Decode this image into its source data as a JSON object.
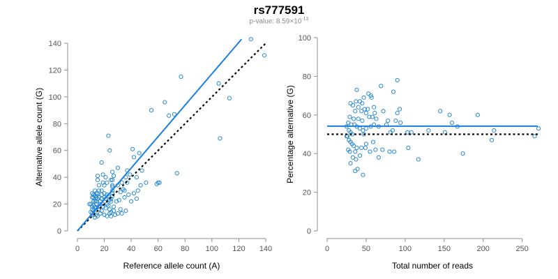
{
  "header": {
    "title": "rs777591",
    "pvalue_label": "p-value: 8.59×10",
    "pvalue_exp": "-13"
  },
  "colors": {
    "points": "#2b8ad0",
    "fit_line": "#1a7fe0",
    "reference_line": "#000000"
  },
  "chart_data": [
    {
      "type": "scatter",
      "title": "",
      "xlabel": "Reference allele count (A)",
      "ylabel": "Alternative allele count (G)",
      "xlim": [
        0,
        140
      ],
      "ylim": [
        0,
        140
      ],
      "xticks": [
        0,
        20,
        40,
        60,
        80,
        100,
        120,
        140
      ],
      "yticks": [
        0,
        20,
        40,
        60,
        80,
        100,
        120,
        140
      ],
      "fit_line": {
        "x": [
          0,
          122
        ],
        "y": [
          0,
          143
        ]
      },
      "reference_line": {
        "x": [
          0,
          140
        ],
        "y": [
          0,
          140
        ]
      },
      "points": [
        [
          129,
          143
        ],
        [
          139,
          131
        ],
        [
          77,
          115
        ],
        [
          105,
          110
        ],
        [
          113,
          99
        ],
        [
          65,
          96
        ],
        [
          72,
          87
        ],
        [
          55,
          90
        ],
        [
          68,
          86
        ],
        [
          106,
          69
        ],
        [
          23,
          71
        ],
        [
          18,
          51
        ],
        [
          24,
          60
        ],
        [
          41,
          61
        ],
        [
          46,
          58
        ],
        [
          42,
          55
        ],
        [
          30,
          47
        ],
        [
          26,
          44
        ],
        [
          27,
          41
        ],
        [
          37,
          45
        ],
        [
          48,
          45
        ],
        [
          44,
          40
        ],
        [
          36,
          40
        ],
        [
          39,
          42
        ],
        [
          37,
          36
        ],
        [
          33,
          36
        ],
        [
          30,
          34
        ],
        [
          47,
          34
        ],
        [
          51,
          36
        ],
        [
          61,
          36
        ],
        [
          59,
          35
        ],
        [
          34,
          31
        ],
        [
          35,
          30
        ],
        [
          32,
          29
        ],
        [
          35,
          25
        ],
        [
          45,
          30
        ],
        [
          42,
          28
        ],
        [
          38,
          27
        ],
        [
          44,
          24
        ],
        [
          40,
          22
        ],
        [
          31,
          23
        ],
        [
          29,
          22
        ],
        [
          27,
          18
        ],
        [
          26,
          26
        ],
        [
          26,
          30
        ],
        [
          26,
          34
        ],
        [
          26,
          38
        ],
        [
          26,
          33
        ],
        [
          25,
          38
        ],
        [
          22,
          36
        ],
        [
          21,
          40
        ],
        [
          20,
          34
        ],
        [
          19,
          36
        ],
        [
          19,
          42
        ],
        [
          18,
          27
        ],
        [
          16,
          34
        ],
        [
          15,
          24
        ],
        [
          15,
          38
        ],
        [
          14,
          22
        ],
        [
          15,
          41
        ],
        [
          16,
          30
        ],
        [
          17,
          20
        ],
        [
          18,
          24
        ],
        [
          20,
          28
        ],
        [
          21,
          24
        ],
        [
          22,
          20
        ],
        [
          23,
          26
        ],
        [
          24,
          16
        ],
        [
          25,
          22
        ],
        [
          25,
          14
        ],
        [
          22,
          11
        ],
        [
          20,
          12
        ],
        [
          18,
          15
        ],
        [
          17,
          13
        ],
        [
          16,
          16
        ],
        [
          15,
          11
        ],
        [
          14,
          12
        ],
        [
          13,
          10
        ],
        [
          12,
          12
        ],
        [
          11,
          13
        ],
        [
          11,
          18
        ],
        [
          10,
          20
        ],
        [
          12,
          15
        ],
        [
          13,
          18
        ],
        [
          14,
          17
        ],
        [
          14,
          20
        ],
        [
          12,
          22
        ],
        [
          13,
          26
        ],
        [
          12,
          27
        ],
        [
          14,
          28
        ],
        [
          11,
          25
        ],
        [
          13,
          30
        ],
        [
          16,
          18
        ],
        [
          17,
          22
        ],
        [
          19,
          20
        ],
        [
          21,
          17
        ],
        [
          23,
          19
        ],
        [
          24,
          23
        ],
        [
          27,
          15
        ],
        [
          30,
          13
        ],
        [
          28,
          12
        ],
        [
          25,
          11
        ],
        [
          32,
          16
        ],
        [
          36,
          15
        ],
        [
          33,
          13
        ],
        [
          24,
          13
        ],
        [
          10,
          14
        ],
        [
          11,
          16
        ],
        [
          9,
          20
        ],
        [
          12,
          19
        ],
        [
          12,
          25
        ],
        [
          11,
          28
        ],
        [
          13,
          22
        ],
        [
          14,
          25
        ],
        [
          16,
          25
        ],
        [
          15,
          28
        ],
        [
          18,
          30
        ],
        [
          20,
          25
        ],
        [
          22,
          27
        ],
        [
          25,
          24
        ],
        [
          26,
          28
        ],
        [
          19,
          18
        ],
        [
          60,
          36
        ],
        [
          74,
          43
        ]
      ]
    },
    {
      "type": "scatter",
      "title": "",
      "xlabel": "Total number of reads",
      "ylabel": "Percentage alternative (G)",
      "xlim": [
        0,
        270
      ],
      "ylim": [
        0,
        100
      ],
      "xticks": [
        0,
        50,
        100,
        150,
        200,
        250
      ],
      "yticks": [
        0,
        20,
        40,
        60,
        80,
        100
      ],
      "fit_line": {
        "x": [
          0,
          270
        ],
        "y": [
          54.2,
          54.2
        ]
      },
      "reference_line": {
        "x": [
          0,
          270
        ],
        "y": [
          50,
          50
        ]
      },
      "points": [
        [
          90,
          78
        ],
        [
          69,
          75
        ],
        [
          85,
          72
        ],
        [
          38,
          73
        ],
        [
          53,
          71
        ],
        [
          56,
          70
        ],
        [
          47,
          69
        ],
        [
          57,
          69
        ],
        [
          37,
          67
        ],
        [
          42,
          67
        ],
        [
          45,
          66
        ],
        [
          30,
          66
        ],
        [
          33,
          65
        ],
        [
          40,
          64
        ],
        [
          48,
          63
        ],
        [
          52,
          63
        ],
        [
          60,
          64
        ],
        [
          36,
          62
        ],
        [
          44,
          62
        ],
        [
          50,
          61
        ],
        [
          61,
          61
        ],
        [
          72,
          62
        ],
        [
          90,
          61
        ],
        [
          93,
          63
        ],
        [
          145,
          62
        ],
        [
          157,
          60
        ],
        [
          193,
          60
        ],
        [
          29,
          59
        ],
        [
          34,
          58
        ],
        [
          40,
          58
        ],
        [
          45,
          57
        ],
        [
          54,
          59
        ],
        [
          58,
          59
        ],
        [
          63,
          58
        ],
        [
          78,
          57
        ],
        [
          88,
          57
        ],
        [
          94,
          56
        ],
        [
          160,
          56
        ],
        [
          27,
          56
        ],
        [
          31,
          55
        ],
        [
          35,
          55
        ],
        [
          38,
          54
        ],
        [
          42,
          53
        ],
        [
          46,
          52
        ],
        [
          50,
          53
        ],
        [
          56,
          54
        ],
        [
          60,
          55
        ],
        [
          66,
          54
        ],
        [
          76,
          55
        ],
        [
          81,
          51
        ],
        [
          84,
          52
        ],
        [
          103,
          51
        ],
        [
          108,
          51
        ],
        [
          130,
          52
        ],
        [
          151,
          51
        ],
        [
          167,
          54
        ],
        [
          214,
          52
        ],
        [
          271,
          53
        ],
        [
          25,
          54
        ],
        [
          28,
          52
        ],
        [
          30,
          51
        ],
        [
          26,
          49
        ],
        [
          28,
          47
        ],
        [
          30,
          46
        ],
        [
          32,
          45
        ],
        [
          34,
          44
        ],
        [
          38,
          43
        ],
        [
          27,
          42
        ],
        [
          29,
          41
        ],
        [
          36,
          41
        ],
        [
          44,
          43
        ],
        [
          50,
          45
        ],
        [
          59,
          46
        ],
        [
          62,
          42
        ],
        [
          71,
          42
        ],
        [
          80,
          41
        ],
        [
          86,
          41
        ],
        [
          104,
          43
        ],
        [
          49,
          43
        ],
        [
          55,
          41
        ],
        [
          66,
          38
        ],
        [
          117,
          37
        ],
        [
          174,
          40
        ],
        [
          211,
          47
        ],
        [
          266,
          49
        ],
        [
          33,
          38
        ],
        [
          37,
          37
        ],
        [
          42,
          39
        ],
        [
          30,
          35
        ],
        [
          36,
          31
        ],
        [
          39,
          32
        ],
        [
          46,
          29
        ],
        [
          25,
          49
        ],
        [
          47,
          50
        ],
        [
          32,
          50
        ]
      ]
    }
  ]
}
